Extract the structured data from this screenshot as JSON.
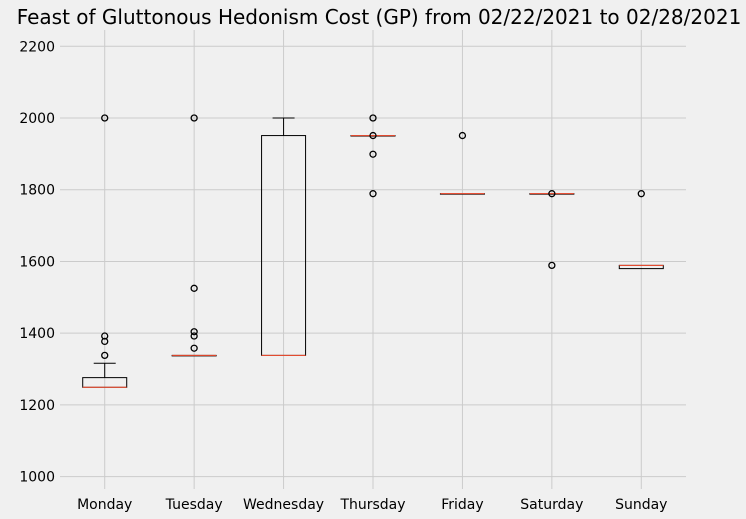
{
  "chart_data": {
    "type": "box",
    "title": "Feast of Gluttonous Hedonism Cost (GP) from 02/22/2021 to 02/28/2021",
    "xlabel": "",
    "ylabel": "",
    "ylim": [
      970,
      2240
    ],
    "yticks": [
      1000,
      1200,
      1400,
      1600,
      1800,
      2000,
      2200
    ],
    "grid": true,
    "categories": [
      "Monday",
      "Tuesday",
      "Wednesday",
      "Thursday",
      "Friday",
      "Saturday",
      "Sunday"
    ],
    "boxes": [
      {
        "category": "Monday",
        "whisker_low": 1249,
        "q1": 1249,
        "median": 1249,
        "q3": 1276,
        "whisker_high": 1316,
        "outliers": [
          1338,
          1377,
          1392,
          2000
        ]
      },
      {
        "category": "Tuesday",
        "whisker_low": 1338,
        "q1": 1338,
        "median": 1338,
        "q3": 1338,
        "whisker_high": 1338,
        "outliers": [
          1358,
          1392,
          1404,
          1525,
          2000
        ]
      },
      {
        "category": "Wednesday",
        "whisker_low": 1338,
        "q1": 1338,
        "median": 1338,
        "q3": 1951,
        "whisker_high": 2000,
        "outliers": []
      },
      {
        "category": "Thursday",
        "whisker_low": 1951,
        "q1": 1951,
        "median": 1951,
        "q3": 1951,
        "whisker_high": 1951,
        "outliers": [
          1789,
          1899,
          1951,
          2000
        ]
      },
      {
        "category": "Friday",
        "whisker_low": 1789,
        "q1": 1789,
        "median": 1789,
        "q3": 1789,
        "whisker_high": 1789,
        "outliers": [
          1951
        ]
      },
      {
        "category": "Saturday",
        "whisker_low": 1789,
        "q1": 1789,
        "median": 1789,
        "q3": 1789,
        "whisker_high": 1789,
        "outliers": [
          1589,
          1789
        ]
      },
      {
        "category": "Sunday",
        "whisker_low": 1580,
        "q1": 1580,
        "median": 1589,
        "q3": 1589,
        "whisker_high": 1589,
        "outliers": [
          1789
        ]
      }
    ],
    "colors": {
      "background": "#f0f0f0",
      "grid": "#cbcbcb",
      "box": "#000000",
      "median": "#fc4f30"
    }
  }
}
